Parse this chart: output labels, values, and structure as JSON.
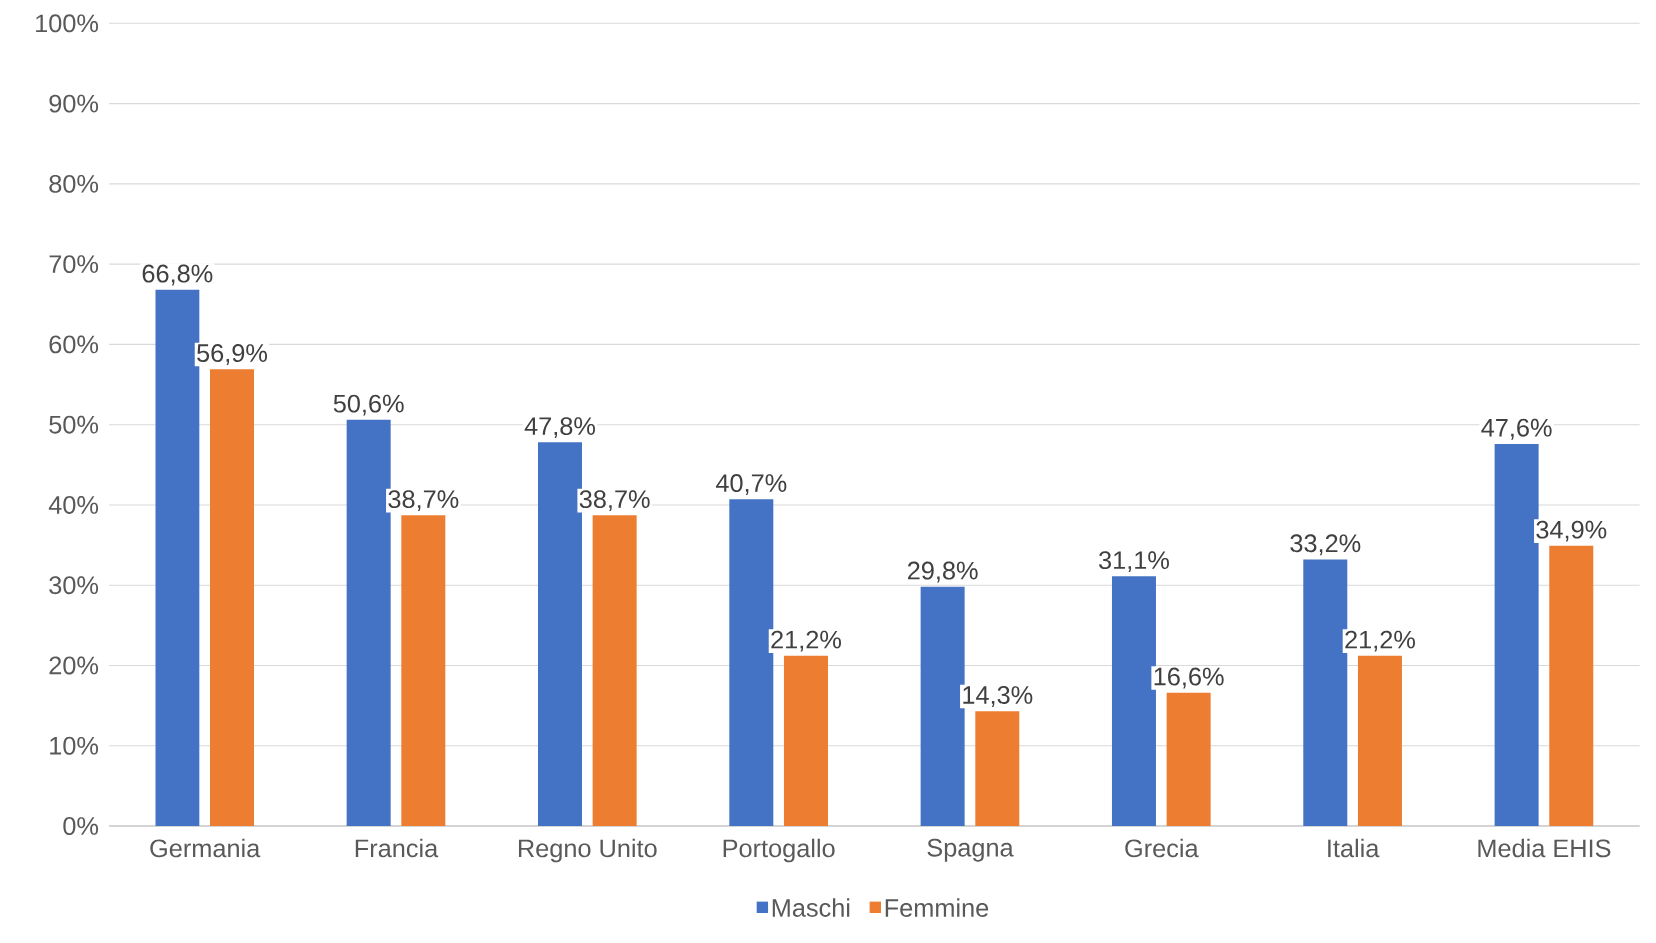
{
  "chart_data": {
    "type": "bar",
    "categories": [
      "Germania",
      "Francia",
      "Regno Unito",
      "Portogallo",
      "Spagna",
      "Grecia",
      "Italia",
      "Media EHIS"
    ],
    "series": [
      {
        "name": "Maschi",
        "color": "#4472c4",
        "values": [
          66.8,
          50.6,
          47.8,
          40.7,
          29.8,
          31.1,
          33.2,
          47.6
        ],
        "value_labels": [
          "66,8%",
          "50,6%",
          "47,8%",
          "40,7%",
          "29,8%",
          "31,1%",
          "33,2%",
          "47,6%"
        ]
      },
      {
        "name": "Femmine",
        "color": "#ed7d31",
        "values": [
          56.9,
          38.7,
          38.7,
          21.2,
          14.3,
          16.6,
          21.2,
          34.9
        ],
        "value_labels": [
          "56,9%",
          "38,7%",
          "38,7%",
          "21,2%",
          "14,3%",
          "16,6%",
          "21,2%",
          "34,9%"
        ]
      }
    ],
    "ylim": [
      0,
      100
    ],
    "yticks": [
      {
        "value": 0,
        "label": "0%"
      },
      {
        "value": 10,
        "label": "10%"
      },
      {
        "value": 20,
        "label": "20%"
      },
      {
        "value": 30,
        "label": "30%"
      },
      {
        "value": 40,
        "label": "40%"
      },
      {
        "value": 50,
        "label": "50%"
      },
      {
        "value": 60,
        "label": "60%"
      },
      {
        "value": 70,
        "label": "70%"
      },
      {
        "value": 80,
        "label": "80%"
      },
      {
        "value": 90,
        "label": "90%"
      },
      {
        "value": 100,
        "label": "100%"
      }
    ],
    "grid": "y",
    "legend": "bottom"
  }
}
